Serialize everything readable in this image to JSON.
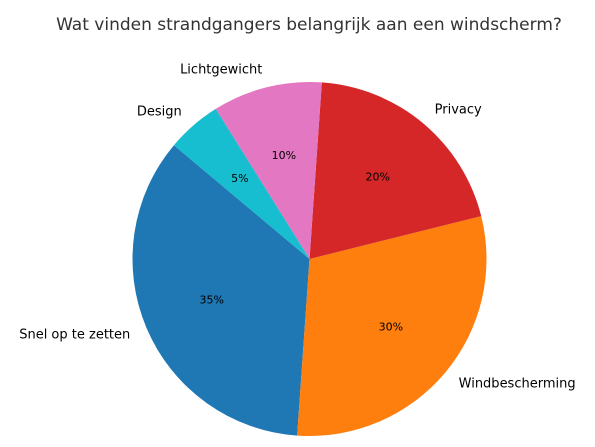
{
  "chart_data": {
    "type": "pie",
    "title": "Wat vinden strandgangers belangrijk aan een windscherm?",
    "categories": [
      "Snel op te zetten",
      "Windbescherming",
      "Privacy",
      "Lichtgewicht",
      "Design"
    ],
    "values": [
      35,
      30,
      20,
      10,
      5
    ],
    "value_labels": [
      "35%",
      "30%",
      "20%",
      "10%",
      "5%"
    ],
    "colors": [
      "#1f77b4",
      "#ff7f0e",
      "#d62728",
      "#e377c2",
      "#17becf"
    ],
    "unit": "%",
    "start_angle_deg": 140,
    "direction": "counterclockwise",
    "legend": "none"
  }
}
